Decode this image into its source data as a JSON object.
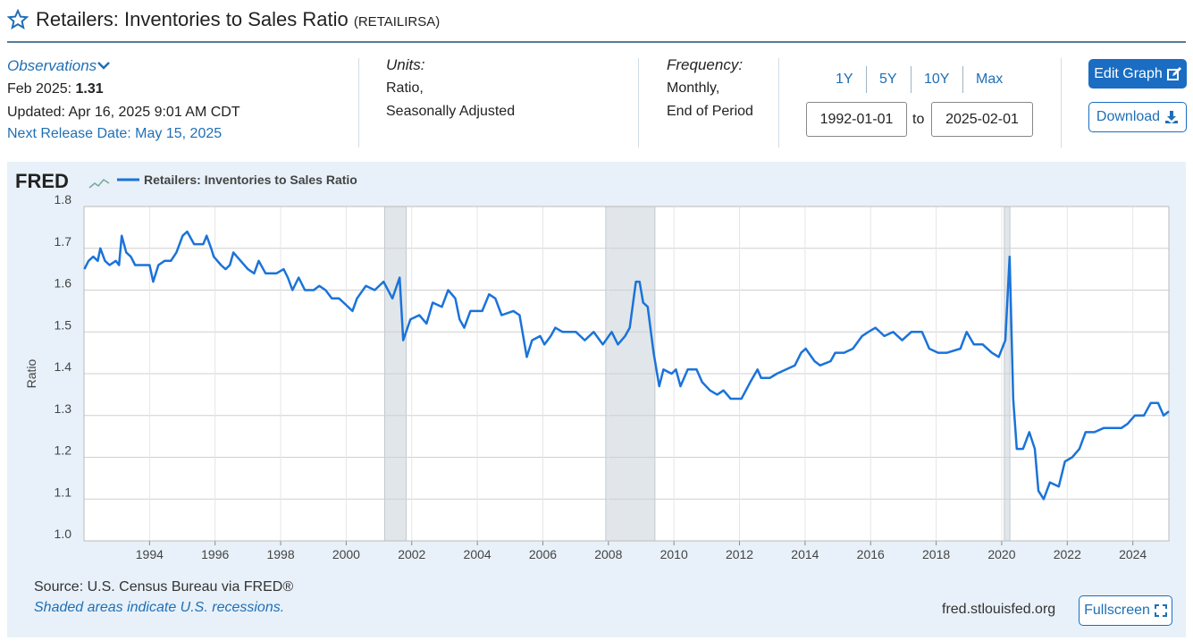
{
  "header": {
    "title": "Retailers: Inventories to Sales Ratio",
    "series_id": "(RETAILIRSA)"
  },
  "observations": {
    "label": "Observations",
    "latest_label": "Feb 2025:",
    "latest_value": "1.31",
    "updated": "Updated: Apr 16, 2025 9:01 AM CDT",
    "next_release": "Next Release Date: May 15, 2025"
  },
  "units": {
    "label": "Units:",
    "lines": [
      "Ratio,",
      "Seasonally Adjusted"
    ]
  },
  "frequency": {
    "label": "Frequency:",
    "lines": [
      "Monthly,",
      "End of Period"
    ]
  },
  "range": {
    "buttons": [
      "1Y",
      "5Y",
      "10Y",
      "Max"
    ],
    "start": "1992-01-01",
    "to": "to",
    "end": "2025-02-01"
  },
  "actions": {
    "edit": "Edit Graph",
    "download": "Download"
  },
  "branding": {
    "logo": "FRED"
  },
  "chart_data": {
    "type": "line",
    "ylabel": "Ratio",
    "xlim": [
      1992,
      2025.1
    ],
    "xticks": [
      1994,
      1996,
      1998,
      2000,
      2002,
      2004,
      2006,
      2008,
      2010,
      2012,
      2014,
      2016,
      2018,
      2020,
      2022,
      2024
    ],
    "ylim": [
      1.0,
      1.8
    ],
    "yticks": [
      {
        "value": 1.0,
        "label": "1.0"
      },
      1.1,
      1.2,
      1.3,
      1.4,
      1.5,
      1.6,
      1.7,
      1.8
    ],
    "grid": true,
    "recessions": [
      {
        "start": 2001.17,
        "end": 2001.83
      },
      {
        "start": 2007.92,
        "end": 2009.42
      },
      {
        "start": 2020.08,
        "end": 2020.25
      }
    ],
    "x": [
      1992.01,
      1992.14,
      1992.28,
      1992.42,
      1992.5,
      1992.64,
      1992.78,
      1992.97,
      1993.07,
      1993.15,
      1993.29,
      1993.43,
      1993.56,
      1993.78,
      1994.0,
      1994.11,
      1994.27,
      1994.46,
      1994.65,
      1994.82,
      1995.01,
      1995.15,
      1995.36,
      1995.64,
      1995.74,
      1995.88,
      1995.96,
      1996.18,
      1996.32,
      1996.45,
      1996.56,
      1996.78,
      1997.0,
      1997.19,
      1997.33,
      1997.54,
      1997.87,
      1998.09,
      1998.22,
      1998.36,
      1998.55,
      1998.74,
      1999.01,
      1999.18,
      1999.37,
      1999.56,
      1999.78,
      1999.92,
      2000.19,
      2000.33,
      2000.6,
      2000.87,
      2001.14,
      2001.41,
      2001.63,
      2001.74,
      2001.96,
      2002.23,
      2002.45,
      2002.64,
      2002.92,
      2003.11,
      2003.33,
      2003.46,
      2003.6,
      2003.79,
      2004.15,
      2004.36,
      2004.55,
      2004.74,
      2005.1,
      2005.29,
      2005.51,
      2005.67,
      2005.92,
      2006.05,
      2006.24,
      2006.38,
      2006.6,
      2007.01,
      2007.28,
      2007.55,
      2007.83,
      2008.1,
      2008.29,
      2008.51,
      2008.65,
      2008.84,
      2008.95,
      2009.06,
      2009.2,
      2009.38,
      2009.55,
      2009.68,
      2009.93,
      2010.06,
      2010.2,
      2010.42,
      2010.69,
      2010.86,
      2011.1,
      2011.32,
      2011.51,
      2011.73,
      2012.06,
      2012.33,
      2012.55,
      2012.66,
      2012.93,
      2013.14,
      2013.42,
      2013.69,
      2013.88,
      2014.02,
      2014.29,
      2014.46,
      2014.78,
      2014.92,
      2015.19,
      2015.46,
      2015.74,
      2015.93,
      2016.15,
      2016.42,
      2016.69,
      2016.96,
      2017.24,
      2017.57,
      2017.79,
      2018.06,
      2018.33,
      2018.74,
      2018.93,
      2019.15,
      2019.42,
      2019.7,
      2019.91,
      2020.11,
      2020.24,
      2020.35,
      2020.46,
      2020.65,
      2020.84,
      2021.01,
      2021.12,
      2021.28,
      2021.47,
      2021.74,
      2021.93,
      2022.15,
      2022.37,
      2022.56,
      2022.83,
      2023.11,
      2023.38,
      2023.65,
      2023.84,
      2024.06,
      2024.34,
      2024.55,
      2024.77,
      2024.94,
      2025.1
    ],
    "series": [
      {
        "name": "Retailers: Inventories to Sales Ratio",
        "color": "#1a73d9",
        "values": [
          1.65,
          1.67,
          1.68,
          1.67,
          1.7,
          1.67,
          1.66,
          1.67,
          1.66,
          1.73,
          1.69,
          1.68,
          1.66,
          1.66,
          1.66,
          1.62,
          1.66,
          1.67,
          1.67,
          1.69,
          1.73,
          1.74,
          1.71,
          1.71,
          1.73,
          1.7,
          1.68,
          1.66,
          1.65,
          1.66,
          1.69,
          1.67,
          1.65,
          1.64,
          1.67,
          1.64,
          1.64,
          1.65,
          1.63,
          1.6,
          1.63,
          1.6,
          1.6,
          1.61,
          1.6,
          1.58,
          1.58,
          1.57,
          1.55,
          1.58,
          1.61,
          1.6,
          1.62,
          1.58,
          1.63,
          1.48,
          1.53,
          1.54,
          1.52,
          1.57,
          1.56,
          1.6,
          1.58,
          1.53,
          1.51,
          1.55,
          1.55,
          1.59,
          1.58,
          1.54,
          1.55,
          1.54,
          1.44,
          1.48,
          1.49,
          1.47,
          1.49,
          1.51,
          1.5,
          1.5,
          1.48,
          1.5,
          1.47,
          1.5,
          1.47,
          1.49,
          1.51,
          1.62,
          1.62,
          1.57,
          1.56,
          1.45,
          1.37,
          1.41,
          1.4,
          1.41,
          1.37,
          1.41,
          1.41,
          1.38,
          1.36,
          1.35,
          1.36,
          1.34,
          1.34,
          1.38,
          1.41,
          1.39,
          1.39,
          1.4,
          1.41,
          1.42,
          1.45,
          1.46,
          1.43,
          1.42,
          1.43,
          1.45,
          1.45,
          1.46,
          1.49,
          1.5,
          1.51,
          1.49,
          1.5,
          1.48,
          1.5,
          1.5,
          1.46,
          1.45,
          1.45,
          1.46,
          1.5,
          1.47,
          1.47,
          1.45,
          1.44,
          1.48,
          1.68,
          1.34,
          1.22,
          1.22,
          1.26,
          1.22,
          1.12,
          1.1,
          1.14,
          1.13,
          1.19,
          1.2,
          1.22,
          1.26,
          1.26,
          1.27,
          1.27,
          1.27,
          1.28,
          1.3,
          1.3,
          1.33,
          1.33,
          1.3,
          1.31
        ]
      }
    ]
  },
  "footer": {
    "source": "Source: U.S. Census Bureau via FRED®",
    "note": "Shaded areas indicate U.S. recessions.",
    "site": "fred.stlouisfed.org",
    "fullscreen": "Fullscreen"
  }
}
